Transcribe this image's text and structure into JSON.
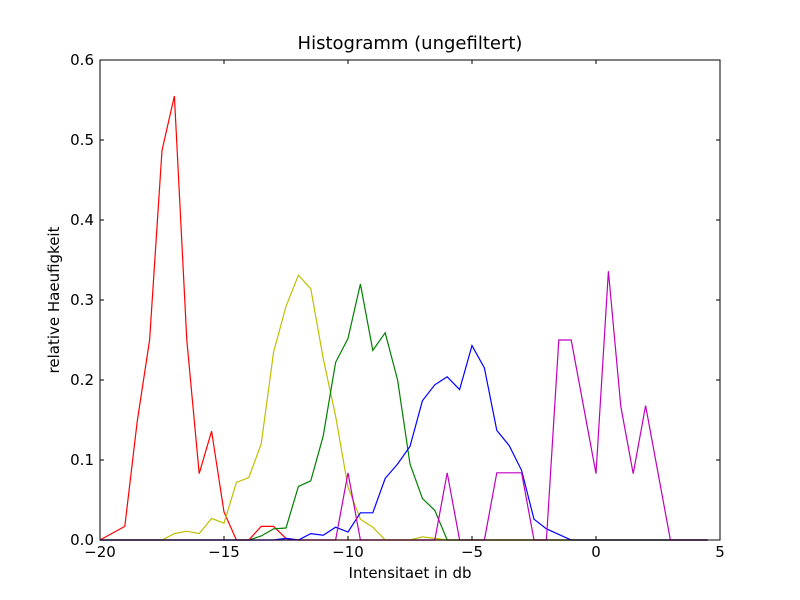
{
  "chart_data": {
    "type": "line",
    "title": "Histogramm (ungefiltert)",
    "xlabel": "Intensitaet in db",
    "ylabel": "relative Haeufigkeit",
    "xlim": [
      -20,
      5
    ],
    "ylim": [
      0,
      0.6
    ],
    "xticks": [
      -20,
      -15,
      -10,
      -5,
      0,
      5
    ],
    "xtick_labels": [
      "−20",
      "−15",
      "−10",
      "−5",
      "0",
      "5"
    ],
    "yticks": [
      0,
      0.1,
      0.2,
      0.3,
      0.4,
      0.5,
      0.6
    ],
    "ytick_labels": [
      "0.0",
      "0.1",
      "0.2",
      "0.3",
      "0.4",
      "0.5",
      "0.6"
    ],
    "grid": false,
    "legend": null,
    "series": [
      {
        "color": "#ff0000",
        "x": [
          -20,
          -19,
          -18.5,
          -18,
          -17.5,
          -17,
          -16.5,
          -16,
          -15.5,
          -15,
          -14.5,
          -14,
          -13.5,
          -13,
          -12.5,
          -12,
          -11.5,
          -10,
          -5,
          0,
          4.5
        ],
        "y": [
          0,
          0.017,
          0.148,
          0.25,
          0.487,
          0.555,
          0.25,
          0.083,
          0.136,
          0.035,
          0,
          0,
          0.017,
          0.017,
          0.002,
          0,
          0,
          0,
          0,
          0,
          0
        ]
      },
      {
        "color": "#bfbf00",
        "x": [
          -20,
          -17.5,
          -17,
          -16.5,
          -16,
          -15.5,
          -15,
          -14.5,
          -14,
          -13.5,
          -13,
          -12.5,
          -12,
          -11.5,
          -11,
          -10.5,
          -10,
          -9.5,
          -9,
          -8.5,
          -8,
          -7.5,
          -7,
          -6.5,
          -6,
          -5,
          0,
          4.5
        ],
        "y": [
          0,
          0,
          0.008,
          0.011,
          0.008,
          0.027,
          0.021,
          0.072,
          0.078,
          0.12,
          0.235,
          0.292,
          0.331,
          0.314,
          0.227,
          0.155,
          0.066,
          0.026,
          0.016,
          0,
          0,
          0,
          0.004,
          0.002,
          0,
          0,
          0,
          0
        ]
      },
      {
        "color": "#008000",
        "x": [
          -20,
          -14,
          -13.5,
          -13,
          -12.5,
          -12,
          -11.5,
          -11,
          -10.5,
          -10,
          -9.5,
          -9,
          -8.5,
          -8,
          -7.5,
          -7,
          -6.5,
          -6,
          -5.5,
          0,
          4.5
        ],
        "y": [
          0,
          0,
          0.005,
          0.014,
          0.015,
          0.067,
          0.074,
          0.13,
          0.222,
          0.252,
          0.32,
          0.237,
          0.259,
          0.2,
          0.095,
          0.052,
          0.037,
          0,
          0,
          0,
          0
        ]
      },
      {
        "color": "#0000ff",
        "x": [
          -20,
          -13,
          -12.5,
          -12,
          -11.5,
          -11,
          -10.5,
          -10,
          -9.5,
          -9,
          -8.5,
          -8,
          -7.5,
          -7,
          -6.5,
          -6,
          -5.5,
          -5,
          -4.5,
          -4,
          -3.5,
          -3,
          -2.5,
          -2,
          -1.5,
          -1,
          0,
          4.5
        ],
        "y": [
          0,
          0,
          0.002,
          0,
          0.008,
          0.006,
          0.016,
          0.01,
          0.034,
          0.034,
          0.077,
          0.095,
          0.117,
          0.174,
          0.194,
          0.204,
          0.188,
          0.243,
          0.215,
          0.137,
          0.118,
          0.087,
          0.026,
          0.014,
          0.007,
          0,
          0,
          0
        ]
      },
      {
        "color": "#bf00bf",
        "x": [
          -20,
          -10.5,
          -10,
          -9.5,
          -6.5,
          -6,
          -5.5,
          -4.5,
          -4,
          -3.5,
          -3,
          -2.5,
          -2,
          -1.5,
          -1,
          0,
          0.5,
          1,
          1.5,
          2,
          3,
          4.5
        ],
        "y": [
          0,
          0,
          0.084,
          0,
          0,
          0.084,
          0,
          0,
          0.084,
          0.084,
          0.084,
          0,
          0,
          0.25,
          0.25,
          0.083,
          0.336,
          0.167,
          0.083,
          0.168,
          0,
          0
        ]
      }
    ]
  }
}
